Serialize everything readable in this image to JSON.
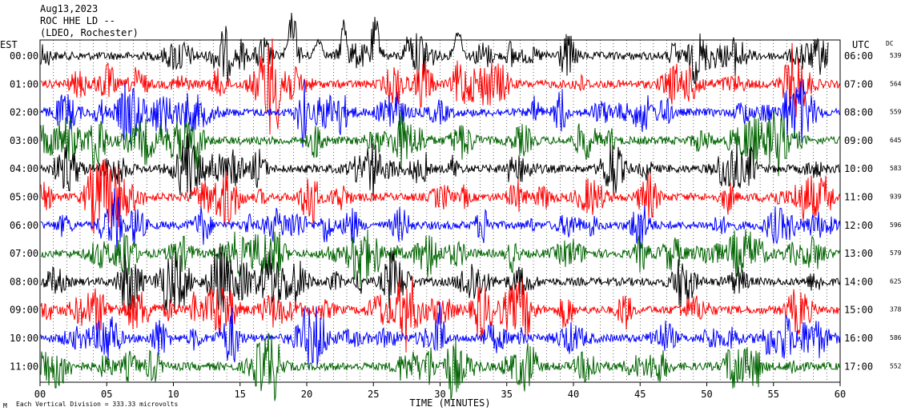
{
  "header": {
    "date": "Aug13,2023",
    "station": "ROC HHE LD --",
    "network": "(LDEO, Rochester)"
  },
  "footer": {
    "scale_note": "Each Vertical Division =  333.33 microvolts",
    "corner_mark": "M"
  },
  "chart_data": {
    "type": "line",
    "xlabel": "TIME (MINUTES)",
    "x_ticks": [
      "00",
      "05",
      "10",
      "15",
      "20",
      "25",
      "30",
      "35",
      "40",
      "45",
      "50",
      "55",
      "60"
    ],
    "xlim": [
      0,
      60
    ],
    "left_axis_title": "EST",
    "right_axis_title": "UTC",
    "dc_title": "DC",
    "trace_colors": [
      "#000000",
      "#ff0000",
      "#0000ff",
      "#006400"
    ],
    "rows": [
      {
        "est": "00:00",
        "utc": "06:00",
        "dc": "539"
      },
      {
        "est": "01:00",
        "utc": "07:00",
        "dc": "564"
      },
      {
        "est": "02:00",
        "utc": "08:00",
        "dc": "559"
      },
      {
        "est": "03:00",
        "utc": "09:00",
        "dc": "645"
      },
      {
        "est": "04:00",
        "utc": "10:00",
        "dc": "583"
      },
      {
        "est": "05:00",
        "utc": "11:00",
        "dc": "939"
      },
      {
        "est": "06:00",
        "utc": "12:00",
        "dc": "596"
      },
      {
        "est": "07:00",
        "utc": "13:00",
        "dc": "579"
      },
      {
        "est": "08:00",
        "utc": "14:00",
        "dc": "625"
      },
      {
        "est": "09:00",
        "utc": "15:00",
        "dc": "378"
      },
      {
        "est": "10:00",
        "utc": "16:00",
        "dc": "586"
      },
      {
        "est": "11:00",
        "utc": "17:00",
        "dc": "552"
      }
    ]
  }
}
